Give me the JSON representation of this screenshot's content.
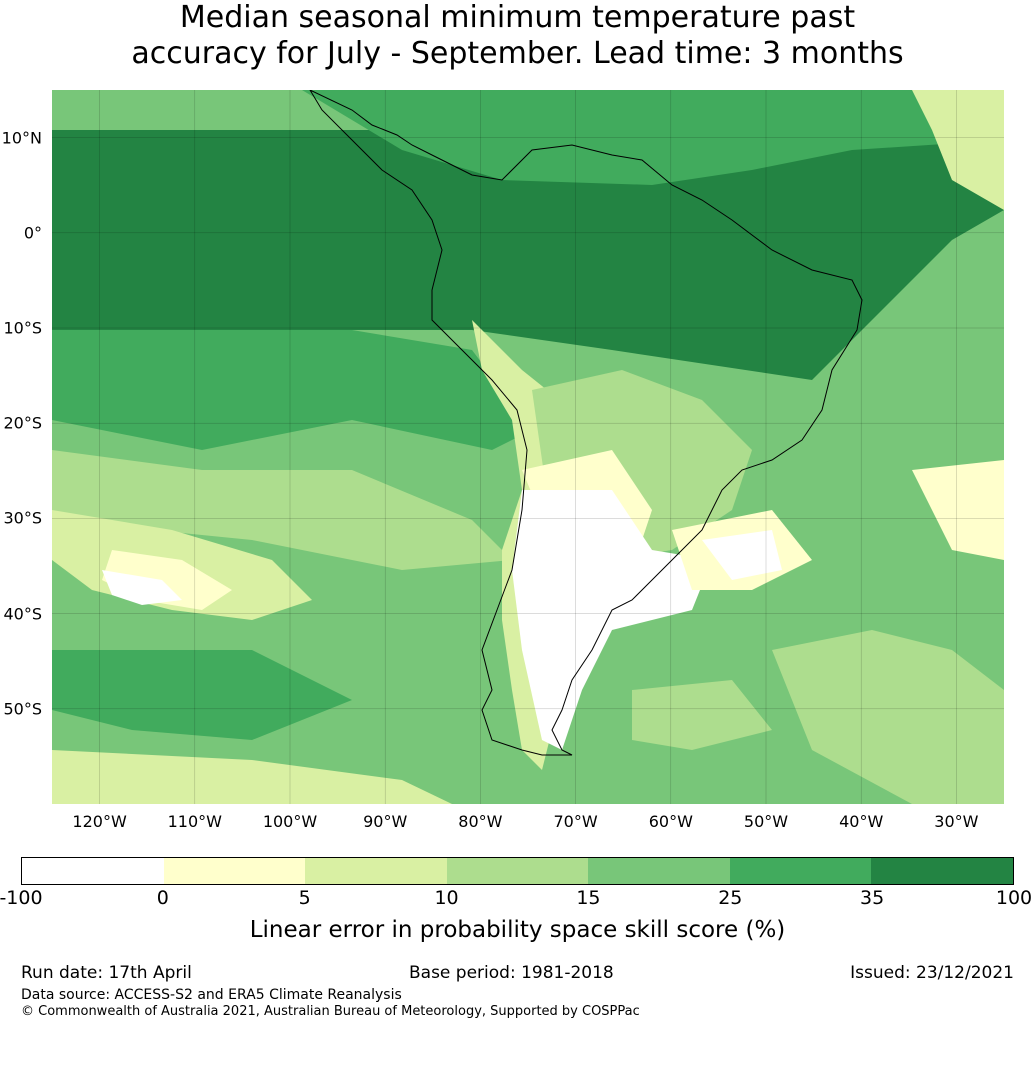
{
  "title_line1": "Median seasonal minimum temperature past",
  "title_line2": "accuracy for July - September. Lead time: 3 months",
  "map": {
    "lon_ticks": [
      "120°W",
      "110°W",
      "100°W",
      "90°W",
      "80°W",
      "70°W",
      "60°W",
      "50°W",
      "40°W",
      "30°W"
    ],
    "lat_ticks": [
      "10°N",
      "0°",
      "10°S",
      "20°S",
      "30°S",
      "40°S",
      "50°S"
    ],
    "extent": {
      "lon_min": -125,
      "lon_max": -25,
      "lat_min": -60,
      "lat_max": 15
    }
  },
  "colorbar": {
    "ticks": [
      "-100",
      "0",
      "5",
      "10",
      "15",
      "25",
      "35",
      "100"
    ],
    "colors": [
      "#ffffff",
      "#ffffcc",
      "#d9f0a3",
      "#addd8e",
      "#78c679",
      "#41ab5d",
      "#238443"
    ],
    "label": "Linear error in probability space skill score (%)"
  },
  "footer": {
    "run_date": "Run date: 17th April",
    "base_period": "Base period: 1981-2018",
    "issued": "Issued: 23/12/2021",
    "data_source": "Data source: ACCESS-S2 and ERA5 Climate Reanalysis",
    "copyright": "© Commonwealth of Australia 2021, Australian Bureau of Meteorology, Supported by COSPPac"
  }
}
